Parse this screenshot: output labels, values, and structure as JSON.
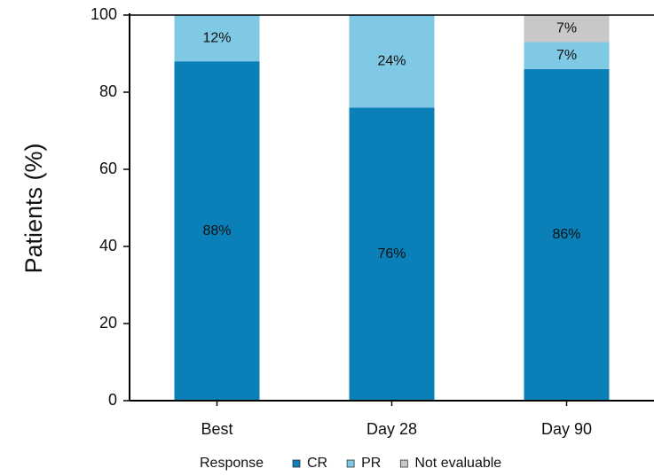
{
  "chart_data": {
    "type": "stacked_bar",
    "y_label": "Patients (%)",
    "categories": [
      "Best",
      "Day 28",
      "Day 90"
    ],
    "series": [
      {
        "name": "CR",
        "color": "#0a7fb8",
        "values": [
          88,
          76,
          86
        ],
        "value_labels": [
          "88%",
          "76%",
          "86%"
        ]
      },
      {
        "name": "PR",
        "color": "#80c9e4",
        "values": [
          12,
          24,
          7
        ],
        "value_labels": [
          "12%",
          "24%",
          "7%"
        ]
      },
      {
        "name": "Not evaluable",
        "color": "#c8c8c8",
        "values": [
          null,
          null,
          7
        ],
        "value_labels": [
          null,
          null,
          "7%"
        ]
      }
    ],
    "legend_title": "Response",
    "ylim": [
      0,
      100
    ],
    "yticks": [
      0,
      20,
      40,
      60,
      80,
      100
    ],
    "grid": false
  }
}
